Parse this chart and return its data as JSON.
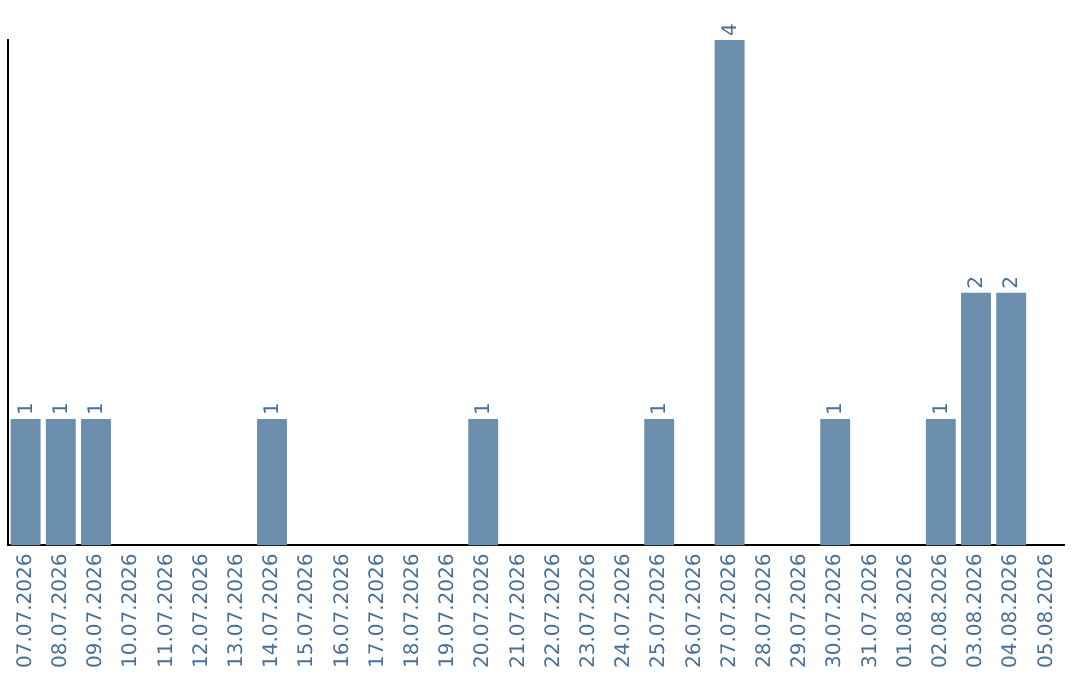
{
  "chart_data": {
    "type": "bar",
    "categories": [
      "07.07.2026",
      "08.07.2026",
      "09.07.2026",
      "10.07.2026",
      "11.07.2026",
      "12.07.2026",
      "13.07.2026",
      "14.07.2026",
      "15.07.2026",
      "16.07.2026",
      "17.07.2026",
      "18.07.2026",
      "19.07.2026",
      "20.07.2026",
      "21.07.2026",
      "22.07.2026",
      "23.07.2026",
      "24.07.2026",
      "25.07.2026",
      "26.07.2026",
      "27.07.2026",
      "28.07.2026",
      "29.07.2026",
      "30.07.2026",
      "31.07.2026",
      "01.08.2026",
      "02.08.2026",
      "03.08.2026",
      "04.08.2026",
      "05.08.2026"
    ],
    "values": [
      1,
      1,
      1,
      0,
      0,
      0,
      0,
      1,
      0,
      0,
      0,
      0,
      0,
      1,
      0,
      0,
      0,
      0,
      1,
      0,
      4,
      0,
      0,
      1,
      0,
      0,
      1,
      2,
      2,
      0
    ],
    "value_labels": [
      "1",
      "1",
      "1",
      null,
      null,
      null,
      null,
      "1",
      null,
      null,
      null,
      null,
      null,
      "1",
      null,
      null,
      null,
      null,
      "1",
      null,
      "4",
      null,
      null,
      "1",
      null,
      null,
      "1",
      "2",
      "2",
      null
    ],
    "color": "#6d8fae",
    "grid": false,
    "legend": false,
    "tick_labels": "x"
  }
}
